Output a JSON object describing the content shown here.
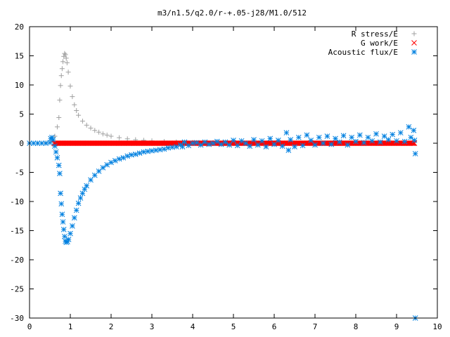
{
  "chart_data": {
    "type": "scatter",
    "title": "m3/n1.5/q2.0/r-+.05-j28/M1.0/512",
    "xlabel": "",
    "ylabel": "",
    "xlim": [
      0,
      10
    ],
    "ylim": [
      -30,
      20
    ],
    "x_ticks": [
      "0",
      "1",
      "2",
      "3",
      "4",
      "5",
      "6",
      "7",
      "8",
      "9",
      "10"
    ],
    "y_ticks": [
      "20",
      "15",
      "10",
      "5",
      "0",
      "-5",
      "-10",
      "-15",
      "-20",
      "-25",
      "-30"
    ],
    "grid": false,
    "legend_position": "top-right",
    "series": [
      {
        "name": "R stress/E",
        "marker": "plus",
        "color": "#a0a0a0",
        "points": [
          [
            0.0,
            0.0
          ],
          [
            0.2,
            0.0
          ],
          [
            0.4,
            0.05
          ],
          [
            0.55,
            0.4
          ],
          [
            0.62,
            1.2
          ],
          [
            0.68,
            2.8
          ],
          [
            0.72,
            4.4
          ],
          [
            0.74,
            7.4
          ],
          [
            0.76,
            9.9
          ],
          [
            0.78,
            11.6
          ],
          [
            0.8,
            12.8
          ],
          [
            0.82,
            14.0
          ],
          [
            0.84,
            14.9
          ],
          [
            0.86,
            15.4
          ],
          [
            0.88,
            15.2
          ],
          [
            0.9,
            14.6
          ],
          [
            0.92,
            13.8
          ],
          [
            0.95,
            12.2
          ],
          [
            1.0,
            9.8
          ],
          [
            1.05,
            8.0
          ],
          [
            1.1,
            6.6
          ],
          [
            1.15,
            5.6
          ],
          [
            1.2,
            4.8
          ],
          [
            1.3,
            3.8
          ],
          [
            1.4,
            3.1
          ],
          [
            1.5,
            2.6
          ],
          [
            1.6,
            2.2
          ],
          [
            1.7,
            1.9
          ],
          [
            1.8,
            1.6
          ],
          [
            1.9,
            1.4
          ],
          [
            2.0,
            1.2
          ],
          [
            2.2,
            0.95
          ],
          [
            2.4,
            0.75
          ],
          [
            2.6,
            0.6
          ],
          [
            2.8,
            0.5
          ],
          [
            3.0,
            0.4
          ],
          [
            3.3,
            0.3
          ],
          [
            3.6,
            0.22
          ],
          [
            4.0,
            0.15
          ],
          [
            4.5,
            0.1
          ],
          [
            5.0,
            0.07
          ],
          [
            6.0,
            0.04
          ],
          [
            7.0,
            0.03
          ],
          [
            8.0,
            0.02
          ],
          [
            9.0,
            0.01
          ],
          [
            9.4,
            0.0
          ]
        ]
      },
      {
        "name": "G work/E",
        "marker": "cross",
        "color": "#ff0000",
        "x_range": [
          0.6,
          9.45
        ],
        "value": 0
      },
      {
        "name": "Acoustic flux/E",
        "marker": "star",
        "color": "#0080e0",
        "points": [
          [
            0.0,
            0.0
          ],
          [
            0.1,
            0.0
          ],
          [
            0.2,
            0.0
          ],
          [
            0.3,
            0.0
          ],
          [
            0.4,
            0.0
          ],
          [
            0.5,
            0.1
          ],
          [
            0.52,
            0.8
          ],
          [
            0.55,
            1.0
          ],
          [
            0.58,
            0.6
          ],
          [
            0.62,
            -0.5
          ],
          [
            0.65,
            -1.5
          ],
          [
            0.68,
            -2.5
          ],
          [
            0.72,
            -3.8
          ],
          [
            0.74,
            -5.2
          ],
          [
            0.76,
            -8.6
          ],
          [
            0.78,
            -10.4
          ],
          [
            0.8,
            -12.2
          ],
          [
            0.82,
            -13.5
          ],
          [
            0.84,
            -14.8
          ],
          [
            0.86,
            -16.0
          ],
          [
            0.88,
            -16.8
          ],
          [
            0.9,
            -17.0
          ],
          [
            0.93,
            -16.9
          ],
          [
            0.96,
            -16.5
          ],
          [
            1.0,
            -15.5
          ],
          [
            1.05,
            -14.2
          ],
          [
            1.1,
            -12.8
          ],
          [
            1.15,
            -11.5
          ],
          [
            1.2,
            -10.3
          ],
          [
            1.25,
            -9.4
          ],
          [
            1.3,
            -8.6
          ],
          [
            1.35,
            -7.9
          ],
          [
            1.4,
            -7.3
          ],
          [
            1.5,
            -6.3
          ],
          [
            1.6,
            -5.5
          ],
          [
            1.7,
            -4.8
          ],
          [
            1.8,
            -4.2
          ],
          [
            1.9,
            -3.7
          ],
          [
            2.0,
            -3.3
          ],
          [
            2.1,
            -3.0
          ],
          [
            2.2,
            -2.7
          ],
          [
            2.3,
            -2.5
          ],
          [
            2.4,
            -2.2
          ],
          [
            2.5,
            -2.0
          ],
          [
            2.6,
            -1.9
          ],
          [
            2.7,
            -1.7
          ],
          [
            2.8,
            -1.5
          ],
          [
            2.9,
            -1.4
          ],
          [
            3.0,
            -1.3
          ],
          [
            3.1,
            -1.2
          ],
          [
            3.2,
            -1.1
          ],
          [
            3.3,
            -1.0
          ],
          [
            3.4,
            -0.8
          ],
          [
            3.5,
            -0.7
          ],
          [
            3.6,
            -0.6
          ],
          [
            3.7,
            -0.3
          ],
          [
            3.75,
            -0.6
          ],
          [
            3.8,
            0.2
          ],
          [
            3.9,
            -0.4
          ],
          [
            4.0,
            0.0
          ],
          [
            4.1,
            0.1
          ],
          [
            4.2,
            -0.3
          ],
          [
            4.3,
            0.2
          ],
          [
            4.4,
            -0.2
          ],
          [
            4.5,
            0.0
          ],
          [
            4.6,
            0.3
          ],
          [
            4.7,
            -0.2
          ],
          [
            4.8,
            0.2
          ],
          [
            4.9,
            -0.3
          ],
          [
            5.0,
            0.5
          ],
          [
            5.1,
            -0.4
          ],
          [
            5.2,
            0.4
          ],
          [
            5.3,
            0.0
          ],
          [
            5.4,
            -0.5
          ],
          [
            5.5,
            0.6
          ],
          [
            5.6,
            -0.3
          ],
          [
            5.7,
            0.4
          ],
          [
            5.8,
            -0.6
          ],
          [
            5.9,
            0.8
          ],
          [
            6.0,
            -0.2
          ],
          [
            6.1,
            0.5
          ],
          [
            6.2,
            -0.5
          ],
          [
            6.3,
            1.8
          ],
          [
            6.35,
            -1.2
          ],
          [
            6.4,
            0.6
          ],
          [
            6.5,
            -0.6
          ],
          [
            6.6,
            1.0
          ],
          [
            6.7,
            -0.4
          ],
          [
            6.8,
            1.4
          ],
          [
            6.9,
            0.5
          ],
          [
            7.0,
            -0.3
          ],
          [
            7.1,
            1.0
          ],
          [
            7.2,
            0.0
          ],
          [
            7.3,
            1.2
          ],
          [
            7.4,
            -0.2
          ],
          [
            7.5,
            0.8
          ],
          [
            7.6,
            0.2
          ],
          [
            7.7,
            1.3
          ],
          [
            7.8,
            -0.3
          ],
          [
            7.9,
            1.0
          ],
          [
            8.0,
            0.3
          ],
          [
            8.1,
            1.4
          ],
          [
            8.2,
            0.1
          ],
          [
            8.3,
            1.0
          ],
          [
            8.4,
            0.4
          ],
          [
            8.5,
            1.6
          ],
          [
            8.6,
            0.2
          ],
          [
            8.7,
            1.2
          ],
          [
            8.8,
            0.6
          ],
          [
            8.9,
            1.5
          ],
          [
            9.0,
            0.4
          ],
          [
            9.1,
            1.8
          ],
          [
            9.2,
            0.3
          ],
          [
            9.3,
            2.8
          ],
          [
            9.35,
            1.0
          ],
          [
            9.42,
            2.2
          ],
          [
            9.44,
            0.5
          ],
          [
            9.46,
            -1.8
          ],
          [
            9.46,
            -30.0
          ]
        ]
      }
    ]
  }
}
